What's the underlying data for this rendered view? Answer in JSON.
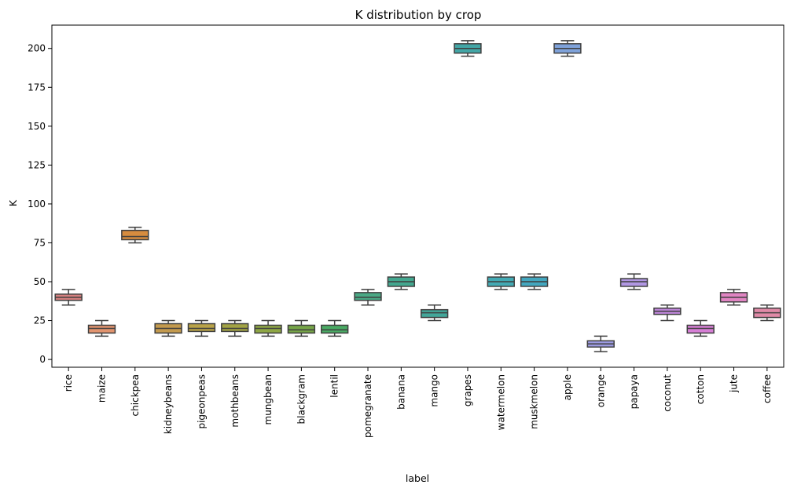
{
  "chart_data": {
    "type": "box",
    "title": "K distribution by crop",
    "xlabel": "label",
    "ylabel": "K",
    "ylim": [
      -5,
      215
    ],
    "yticks": [
      0,
      25,
      50,
      75,
      100,
      125,
      150,
      175,
      200
    ],
    "grid": false,
    "legend": "none",
    "categories": [
      "rice",
      "maize",
      "chickpea",
      "kidneybeans",
      "pigeonpeas",
      "mothbeans",
      "mungbean",
      "blackgram",
      "lentil",
      "pomegranate",
      "banana",
      "mango",
      "grapes",
      "watermelon",
      "muskmelon",
      "apple",
      "orange",
      "papaya",
      "coconut",
      "cotton",
      "jute",
      "coffee"
    ],
    "colors": [
      "#d5807f",
      "#e1946f",
      "#d68c3f",
      "#c39a4e",
      "#b9a348",
      "#a2a344",
      "#8ea644",
      "#76a547",
      "#4aab64",
      "#4aa985",
      "#43a78f",
      "#43a79a",
      "#43a6a6",
      "#43aab4",
      "#43a7bf",
      "#7fa2da",
      "#9d9be2",
      "#b197e3",
      "#c087dc",
      "#d67fd5",
      "#e185c3",
      "#e08aa7"
    ],
    "stats": [
      {
        "min": 35,
        "q1": 38,
        "median": 40,
        "q3": 42,
        "max": 45
      },
      {
        "min": 15,
        "q1": 17,
        "median": 20,
        "q3": 22,
        "max": 25
      },
      {
        "min": 75,
        "q1": 77,
        "median": 79,
        "q3": 83,
        "max": 85
      },
      {
        "min": 15,
        "q1": 17,
        "median": 20,
        "q3": 23,
        "max": 25
      },
      {
        "min": 15,
        "q1": 18,
        "median": 20,
        "q3": 23,
        "max": 25
      },
      {
        "min": 15,
        "q1": 18,
        "median": 20,
        "q3": 23,
        "max": 25
      },
      {
        "min": 15,
        "q1": 17,
        "median": 20,
        "q3": 22,
        "max": 25
      },
      {
        "min": 15,
        "q1": 17,
        "median": 19,
        "q3": 22,
        "max": 25
      },
      {
        "min": 15,
        "q1": 17,
        "median": 19,
        "q3": 22,
        "max": 25
      },
      {
        "min": 35,
        "q1": 38,
        "median": 40,
        "q3": 43,
        "max": 45
      },
      {
        "min": 45,
        "q1": 47,
        "median": 50,
        "q3": 53,
        "max": 55
      },
      {
        "min": 25,
        "q1": 27,
        "median": 30,
        "q3": 32,
        "max": 35
      },
      {
        "min": 195,
        "q1": 197,
        "median": 200,
        "q3": 203,
        "max": 205
      },
      {
        "min": 45,
        "q1": 47,
        "median": 50,
        "q3": 53,
        "max": 55
      },
      {
        "min": 45,
        "q1": 47,
        "median": 50,
        "q3": 53,
        "max": 55
      },
      {
        "min": 195,
        "q1": 197,
        "median": 200,
        "q3": 203,
        "max": 205
      },
      {
        "min": 5,
        "q1": 8,
        "median": 10,
        "q3": 12,
        "max": 15
      },
      {
        "min": 45,
        "q1": 47,
        "median": 50,
        "q3": 52,
        "max": 55
      },
      {
        "min": 25,
        "q1": 29,
        "median": 31,
        "q3": 33,
        "max": 35
      },
      {
        "min": 15,
        "q1": 17,
        "median": 20,
        "q3": 22,
        "max": 25
      },
      {
        "min": 35,
        "q1": 37,
        "median": 40,
        "q3": 43,
        "max": 45
      },
      {
        "min": 25,
        "q1": 27,
        "median": 30,
        "q3": 33,
        "max": 35
      }
    ]
  }
}
